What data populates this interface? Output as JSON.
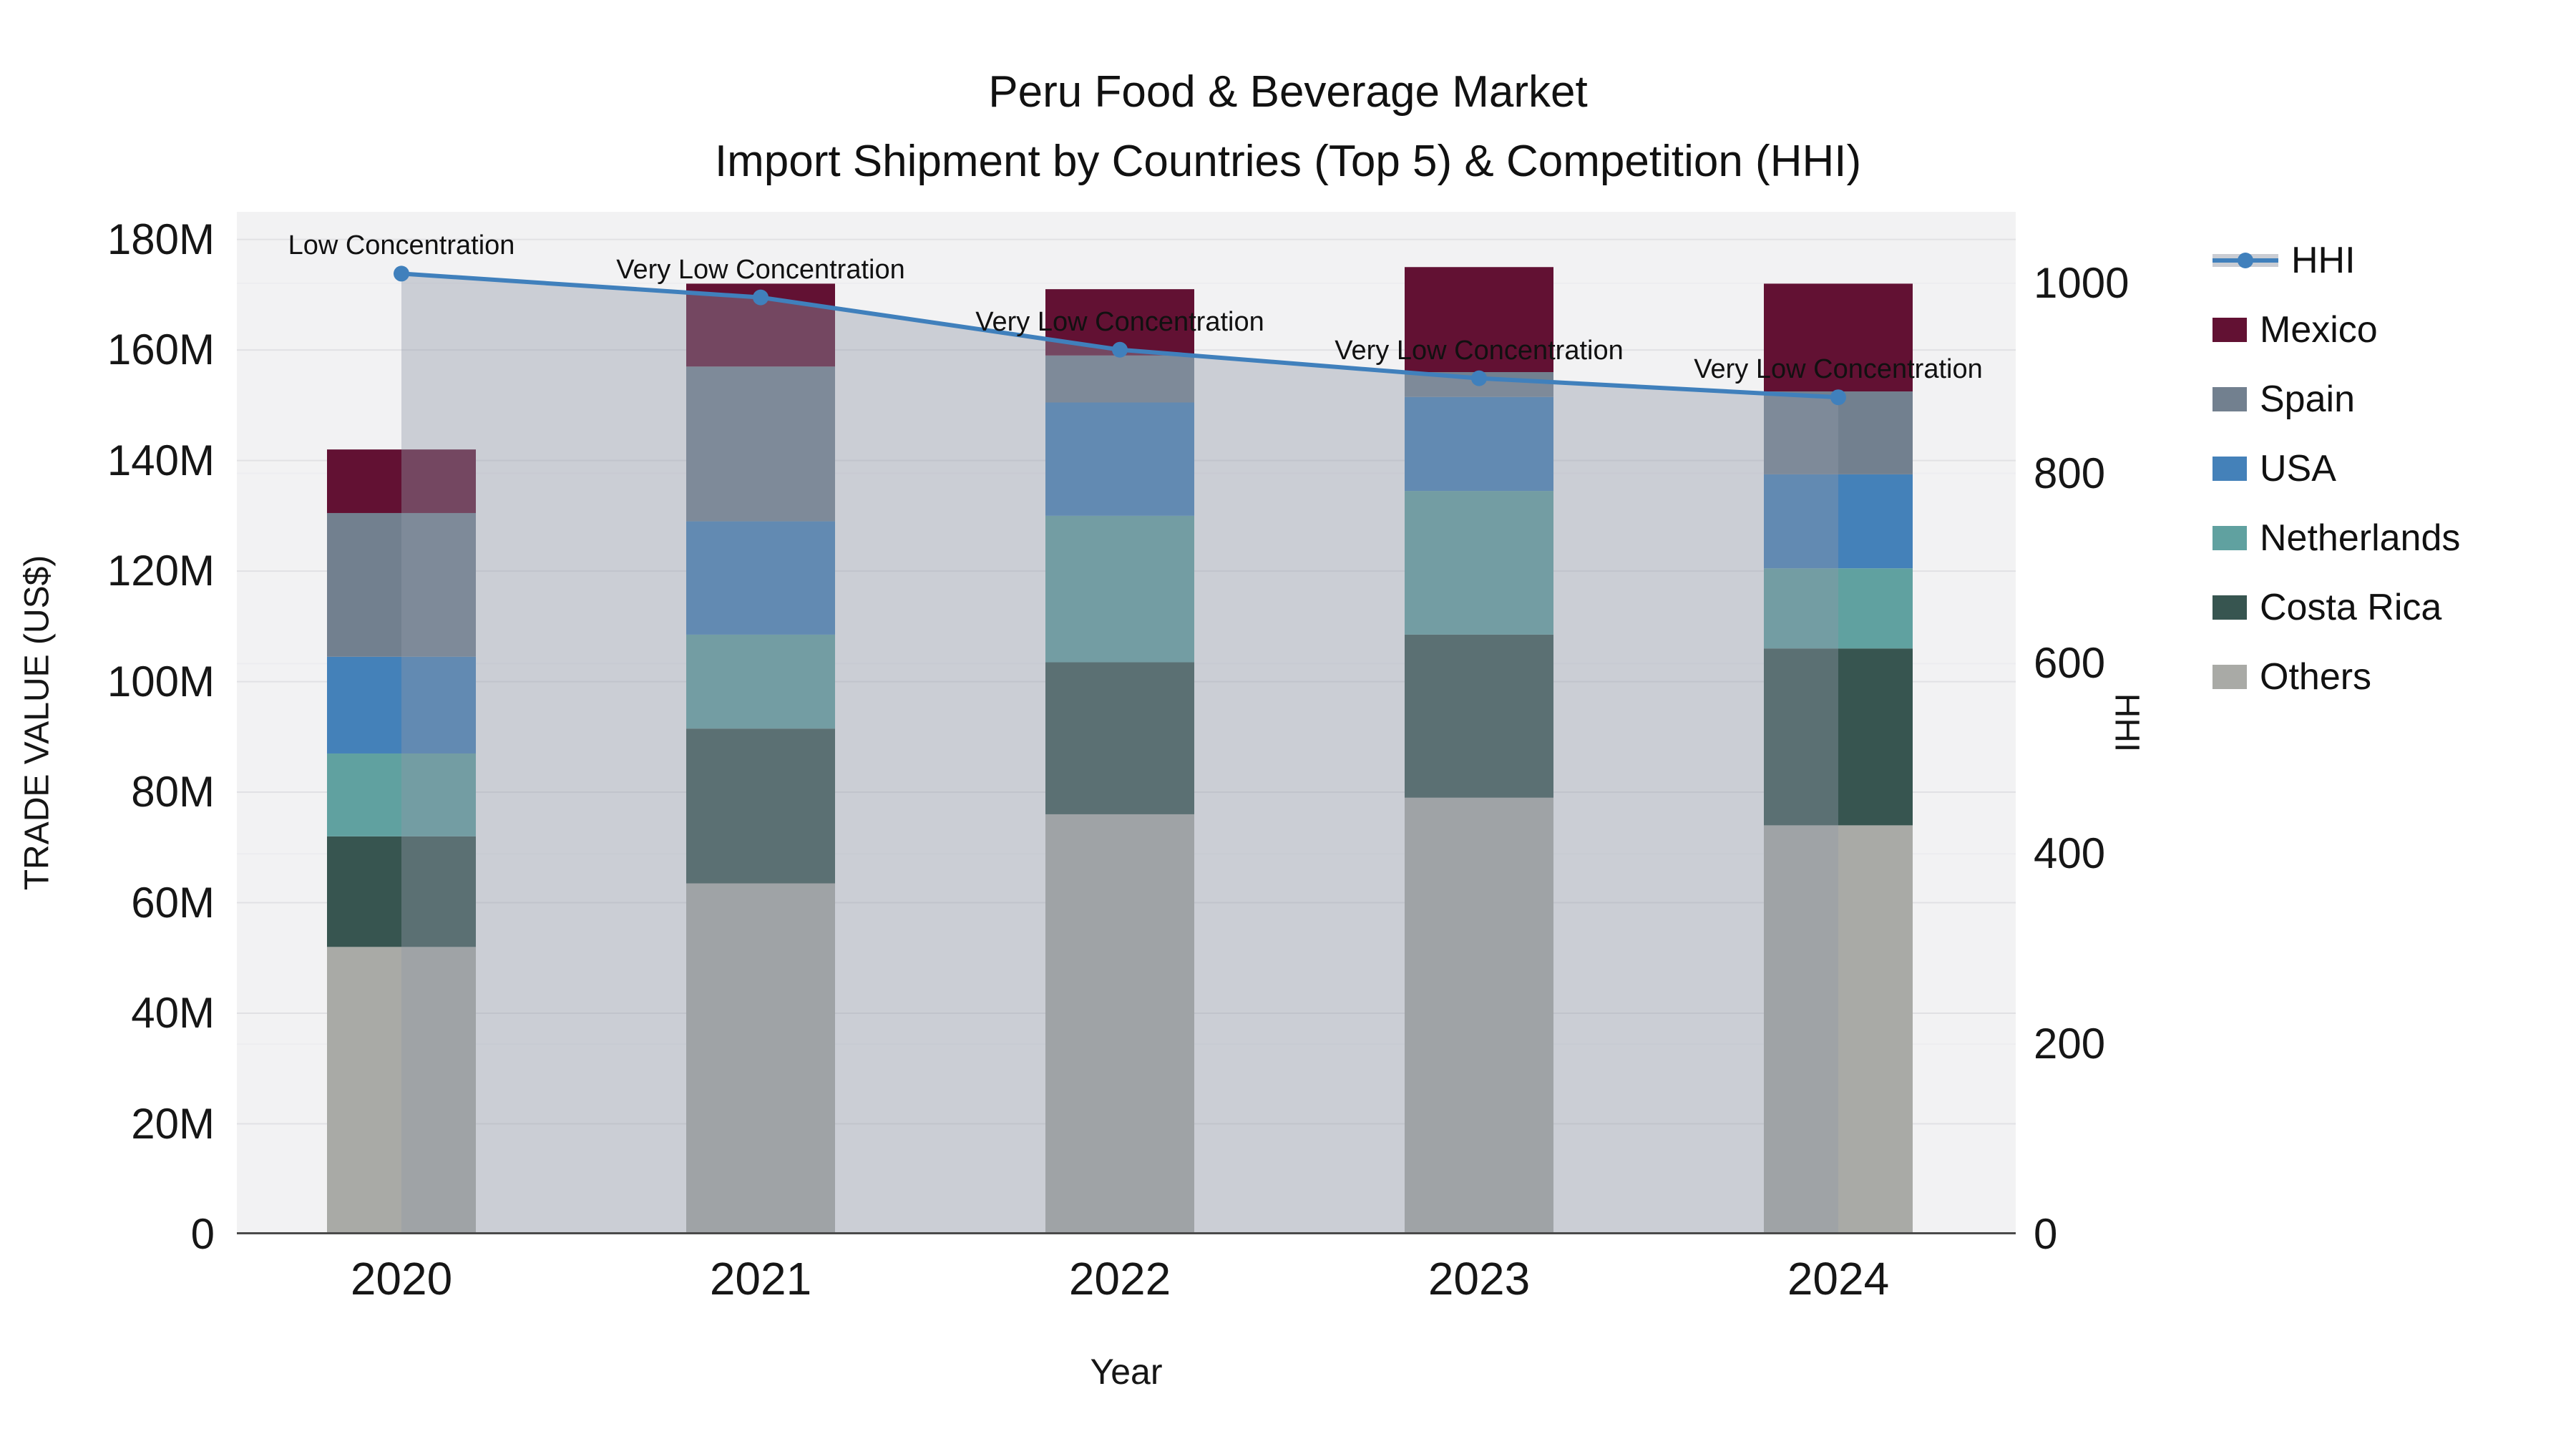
{
  "title": {
    "line1": "Peru Food & Beverage Market",
    "line2": "Import Shipment by Countries (Top 5) & Competition (HHI)"
  },
  "chart_data": {
    "type": "bar",
    "stacked": true,
    "subtype": "stacked-bar-with-line",
    "categories": [
      "2020",
      "2021",
      "2022",
      "2023",
      "2024"
    ],
    "unit": "US$ millions",
    "series": [
      {
        "name": "Others",
        "color": "#a9aaa6",
        "values": [
          52.0,
          63.5,
          76.0,
          79.0,
          74.0
        ]
      },
      {
        "name": "Costa Rica",
        "color": "#375550",
        "values": [
          20.0,
          28.0,
          27.5,
          29.5,
          32.0
        ]
      },
      {
        "name": "Netherlands",
        "color": "#60a1a0",
        "values": [
          15.0,
          17.0,
          26.5,
          26.0,
          14.5
        ]
      },
      {
        "name": "USA",
        "color": "#4481b9",
        "values": [
          17.5,
          20.5,
          20.5,
          17.0,
          17.0
        ]
      },
      {
        "name": "Spain",
        "color": "#72808f",
        "values": [
          26.0,
          28.0,
          8.5,
          4.5,
          15.0
        ]
      },
      {
        "name": "Mexico",
        "color": "#621133",
        "values": [
          11.5,
          15.0,
          12.0,
          19.0,
          19.5
        ]
      }
    ],
    "line": {
      "name": "HHI",
      "color": "#4080bc",
      "area_color": "rgba(145,152,168,0.40)",
      "values": [
        1010,
        985,
        930,
        900,
        880
      ],
      "annotations": [
        "Low Concentration",
        "Very Low Concentration",
        "Very Low Concentration",
        "Very Low Concentration",
        "Very Low Concentration"
      ]
    },
    "x": {
      "label": "Year"
    },
    "y_left": {
      "label": "TRADE VALUE (US$)",
      "ticks": [
        0,
        20,
        40,
        60,
        80,
        100,
        120,
        140,
        160,
        180
      ],
      "tick_suffix": "M",
      "max": 185
    },
    "y_right": {
      "label": "HHI",
      "ticks": [
        0,
        200,
        400,
        600,
        800,
        1000
      ],
      "max": 1075
    },
    "grid": true,
    "legend_position": "right"
  },
  "legend": {
    "items": [
      {
        "label": "HHI",
        "type": "line",
        "color": "#4080bc"
      },
      {
        "label": "Mexico",
        "type": "swatch",
        "color": "#621133"
      },
      {
        "label": "Spain",
        "type": "swatch",
        "color": "#72808f"
      },
      {
        "label": "USA",
        "type": "swatch",
        "color": "#4481b9"
      },
      {
        "label": "Netherlands",
        "type": "swatch",
        "color": "#60a1a0"
      },
      {
        "label": "Costa Rica",
        "type": "swatch",
        "color": "#375550"
      },
      {
        "label": "Others",
        "type": "swatch",
        "color": "#a9aaa6"
      }
    ]
  },
  "colors": {
    "plot_background": "#f2f2f3",
    "page_background": "#ffffff",
    "grid_major": "#e1e1e4",
    "grid_minor": "#ededf0",
    "axis_line": "#4a4a4a",
    "text": "#1a1a1a"
  }
}
